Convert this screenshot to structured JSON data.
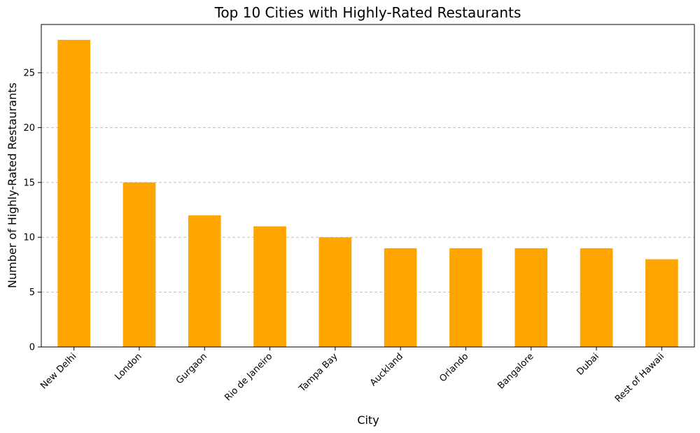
{
  "chart_data": {
    "type": "bar",
    "title": "Top 10 Cities with Highly-Rated Restaurants",
    "xlabel": "City",
    "ylabel": "Number of Highly-Rated Restaurants",
    "categories": [
      "New Delhi",
      "London",
      "Gurgaon",
      "Rio de Janeiro",
      "Tampa Bay",
      "Auckland",
      "Orlando",
      "Bangalore",
      "Dubai",
      "Rest of Hawaii"
    ],
    "values": [
      28,
      15,
      12,
      11,
      10,
      9,
      9,
      9,
      9,
      8
    ],
    "ylim": [
      0,
      29.4
    ],
    "yticks": [
      0,
      5,
      10,
      15,
      20,
      25
    ],
    "grid": "y-dashed",
    "bar_color": "#ffa500",
    "grid_color": "#c0c0c0"
  }
}
